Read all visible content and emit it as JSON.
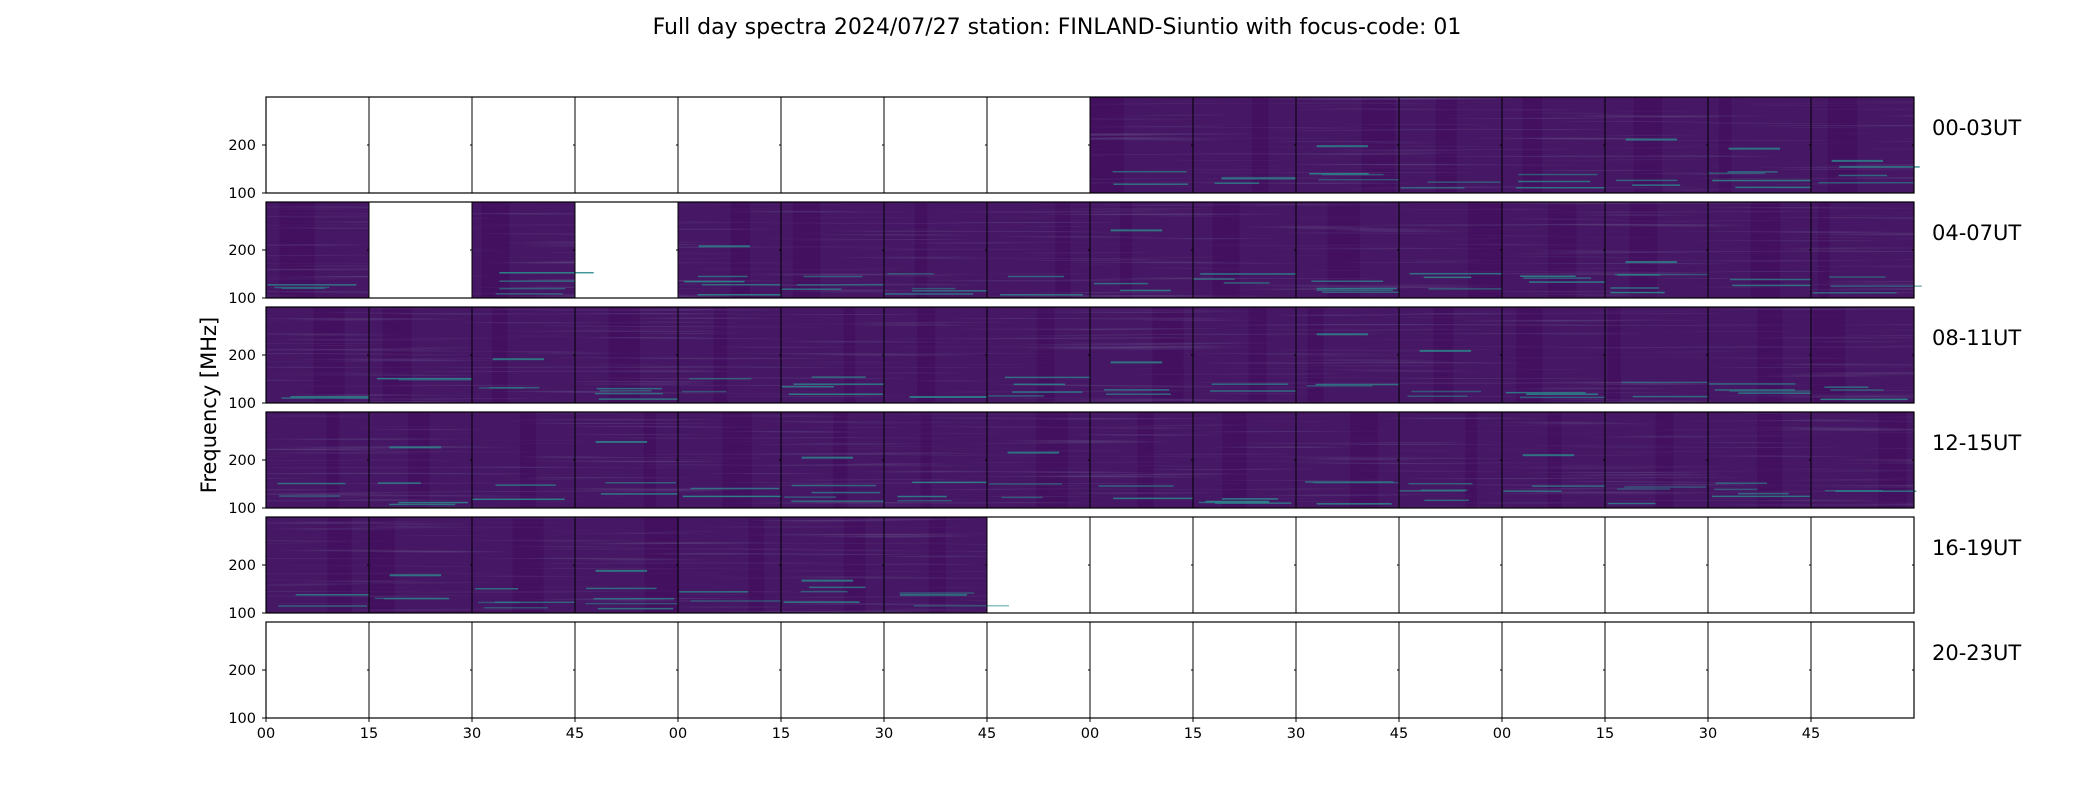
{
  "chart_data": {
    "type": "heatmap",
    "title": "Full day spectra 2024/07/27 station: FINLAND-Siuntio with focus-code: 01",
    "ylabel": "Frequency [MHz]",
    "xlabel": "",
    "y_ticks": [
      "200",
      "100"
    ],
    "x_tick_labels": [
      "00",
      "15",
      "30",
      "45",
      "00",
      "15",
      "30",
      "45",
      "00",
      "15",
      "30",
      "45",
      "00",
      "15",
      "30",
      "45"
    ],
    "colormap": "viridis",
    "colors": {
      "base": "#461764",
      "dark": "#3f0a5a",
      "teal": "#2b8a8c",
      "blue": "#3d5a98"
    },
    "rows": [
      {
        "label": "00-03UT",
        "available": [
          0,
          0,
          0,
          0,
          0,
          0,
          0,
          0,
          1,
          1,
          1,
          1,
          1,
          1,
          1,
          1
        ]
      },
      {
        "label": "04-07UT",
        "available": [
          1,
          0,
          1,
          0,
          1,
          1,
          1,
          1,
          1,
          1,
          1,
          1,
          1,
          1,
          1,
          1
        ]
      },
      {
        "label": "08-11UT",
        "available": [
          1,
          1,
          1,
          1,
          1,
          1,
          1,
          1,
          1,
          1,
          1,
          1,
          1,
          1,
          1,
          1
        ]
      },
      {
        "label": "12-15UT",
        "available": [
          1,
          1,
          1,
          1,
          1,
          1,
          1,
          1,
          1,
          1,
          1,
          1,
          1,
          1,
          1,
          1
        ]
      },
      {
        "label": "16-19UT",
        "available": [
          1,
          1,
          1,
          1,
          1,
          1,
          1,
          0,
          0,
          0,
          0,
          0,
          0,
          0,
          0,
          0
        ]
      },
      {
        "label": "20-23UT",
        "available": [
          0,
          0,
          0,
          0,
          0,
          0,
          0,
          0,
          0,
          0,
          0,
          0,
          0,
          0,
          0,
          0
        ]
      }
    ]
  }
}
